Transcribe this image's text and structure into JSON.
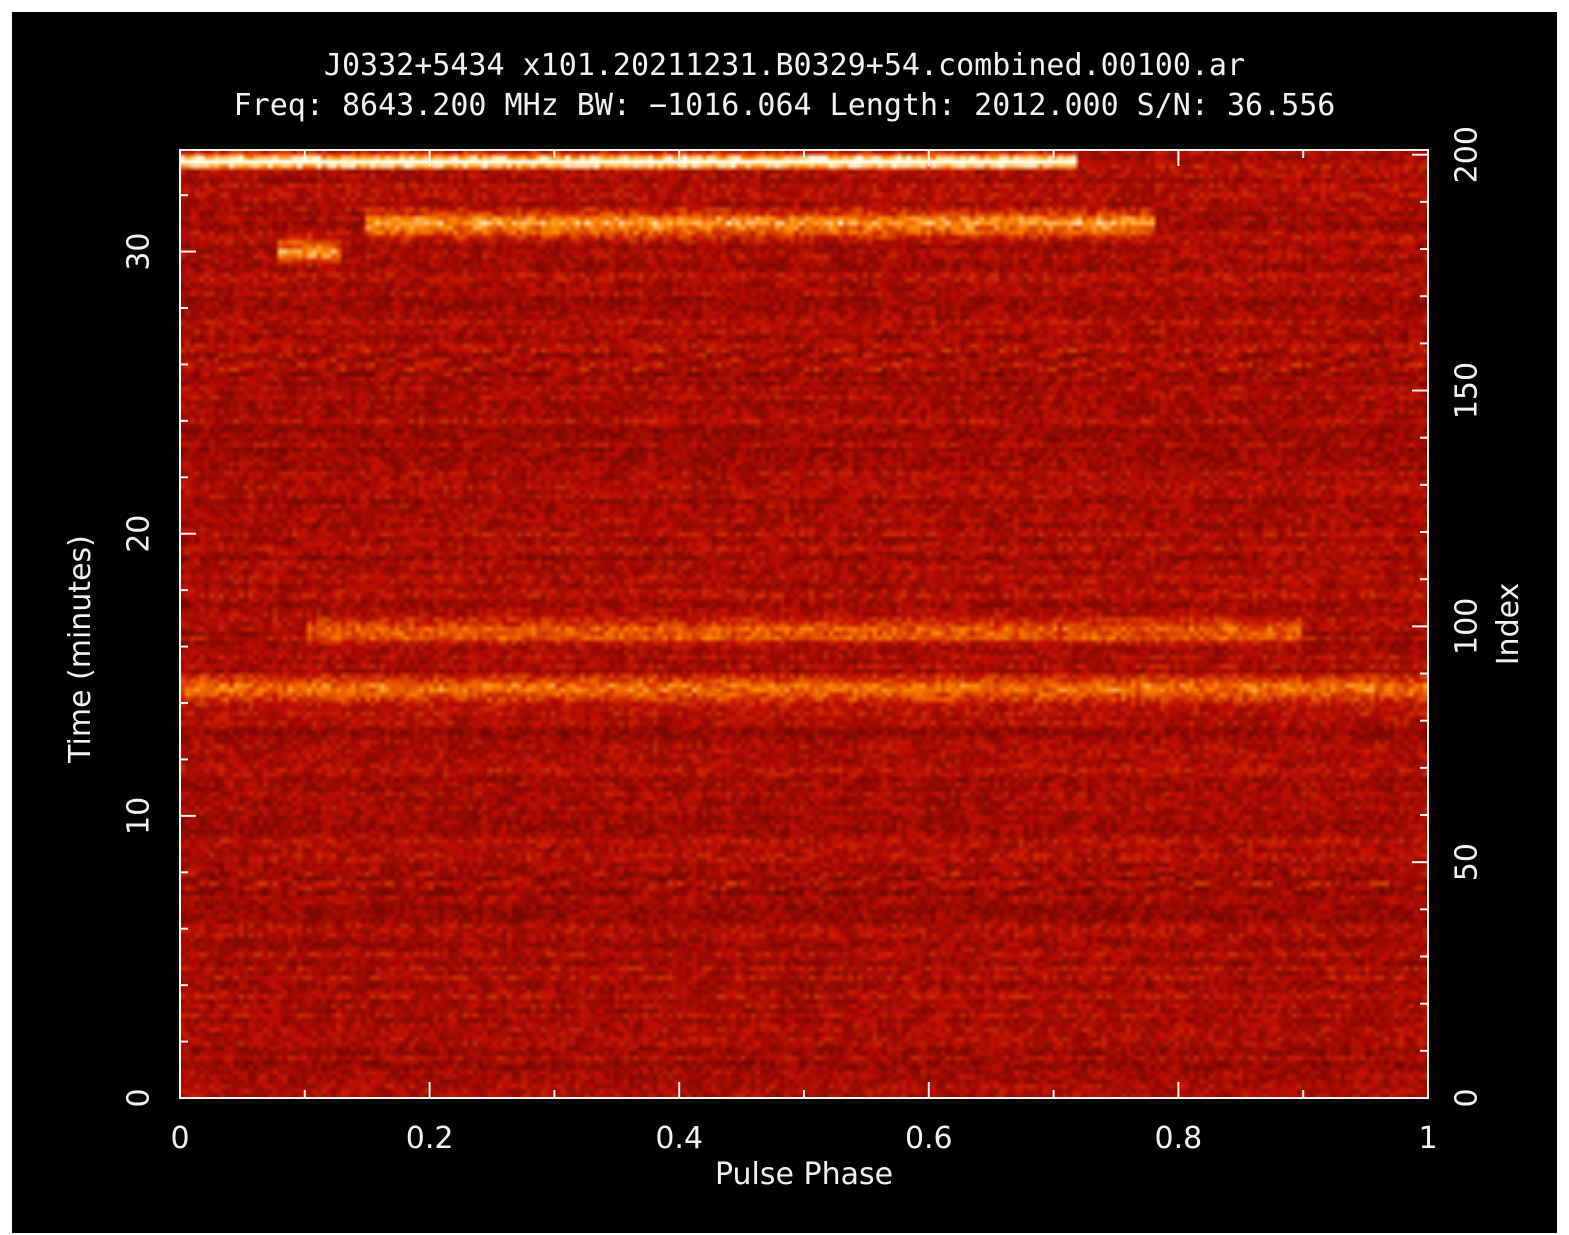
{
  "chart_data": {
    "type": "heatmap",
    "title": "J0332+5434 x101.20211231.B0329+54.combined.00100.ar",
    "subtitle": "Freq: 8643.200 MHz BW: −1016.064 Length: 2012.000 S/N: 36.556",
    "xlabel": "Pulse Phase",
    "ylabel": "Time (minutes)",
    "y2label": "Index",
    "xlim": [
      0,
      1
    ],
    "ylim": [
      0,
      33.6
    ],
    "y2lim": [
      0,
      201
    ],
    "x_ticks": [
      0,
      0.2,
      0.4,
      0.6,
      0.8,
      1
    ],
    "x_tick_labels": [
      "0",
      "0.2",
      "0.4",
      "0.6",
      "0.8",
      "1"
    ],
    "y_ticks": [
      0,
      10,
      20,
      30
    ],
    "y_tick_labels": [
      "0",
      "10",
      "20",
      "30"
    ],
    "y2_ticks": [
      0,
      50,
      100,
      150,
      200
    ],
    "y2_tick_labels": [
      "0",
      "50",
      "100",
      "150",
      "200"
    ],
    "colormap": "heat (black-red-yellow-white)",
    "background_color": "#000000",
    "base_color": "#a01a00",
    "bright_features": [
      {
        "time_min": 33.2,
        "phase_start": 0.0,
        "phase_end": 0.72,
        "intensity": 1.0,
        "note": "bright streak near end of observation"
      },
      {
        "time_min": 31.0,
        "phase_start": 0.15,
        "phase_end": 0.78,
        "intensity": 0.55
      },
      {
        "time_min": 30.0,
        "phase_start": 0.08,
        "phase_end": 0.13,
        "intensity": 0.5
      },
      {
        "time_min": 14.5,
        "phase_start": 0.0,
        "phase_end": 1.0,
        "intensity": 0.45
      },
      {
        "time_min": 16.5,
        "phase_start": 0.1,
        "phase_end": 0.9,
        "intensity": 0.35
      }
    ]
  }
}
